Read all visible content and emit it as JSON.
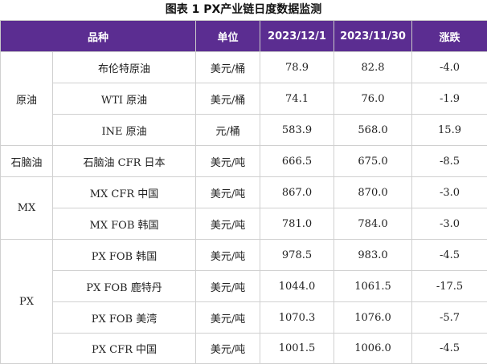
{
  "title": "图表 1 PX产业链日度数据监测",
  "headers": {
    "product": "品种",
    "unit": "单位",
    "date1": "2023/12/1",
    "date2": "2023/11/30",
    "change": "涨跌"
  },
  "groups": [
    {
      "name": "原油",
      "rows": [
        {
          "product": "布伦特原油",
          "unit": "美元/桶",
          "v1": "78.9",
          "v2": "82.8",
          "change": "-4.0"
        },
        {
          "product": "WTI 原油",
          "unit": "美元/桶",
          "v1": "74.1",
          "v2": "76.0",
          "change": "-1.9"
        },
        {
          "product": "INE 原油",
          "unit": "元/桶",
          "v1": "583.9",
          "v2": "568.0",
          "change": "15.9"
        }
      ]
    },
    {
      "name": "石脑油",
      "rows": [
        {
          "product": "石脑油 CFR 日本",
          "unit": "美元/吨",
          "v1": "666.5",
          "v2": "675.0",
          "change": "-8.5"
        }
      ]
    },
    {
      "name": "MX",
      "rows": [
        {
          "product": "MX CFR 中国",
          "unit": "美元/吨",
          "v1": "867.0",
          "v2": "870.0",
          "change": "-3.0"
        },
        {
          "product": "MX FOB 韩国",
          "unit": "美元/吨",
          "v1": "781.0",
          "v2": "784.0",
          "change": "-3.0"
        }
      ]
    },
    {
      "name": "PX",
      "rows": [
        {
          "product": "PX FOB 韩国",
          "unit": "美元/吨",
          "v1": "978.5",
          "v2": "983.0",
          "change": "-4.5"
        },
        {
          "product": "PX FOB 鹿特丹",
          "unit": "美元/吨",
          "v1": "1044.0",
          "v2": "1061.5",
          "change": "-17.5"
        },
        {
          "product": "PX FOB 美湾",
          "unit": "美元/吨",
          "v1": "1070.3",
          "v2": "1076.0",
          "change": "-5.7"
        },
        {
          "product": "PX CFR 中国",
          "unit": "美元/吨",
          "v1": "1001.5",
          "v2": "1006.0",
          "change": "-4.5"
        }
      ]
    }
  ]
}
